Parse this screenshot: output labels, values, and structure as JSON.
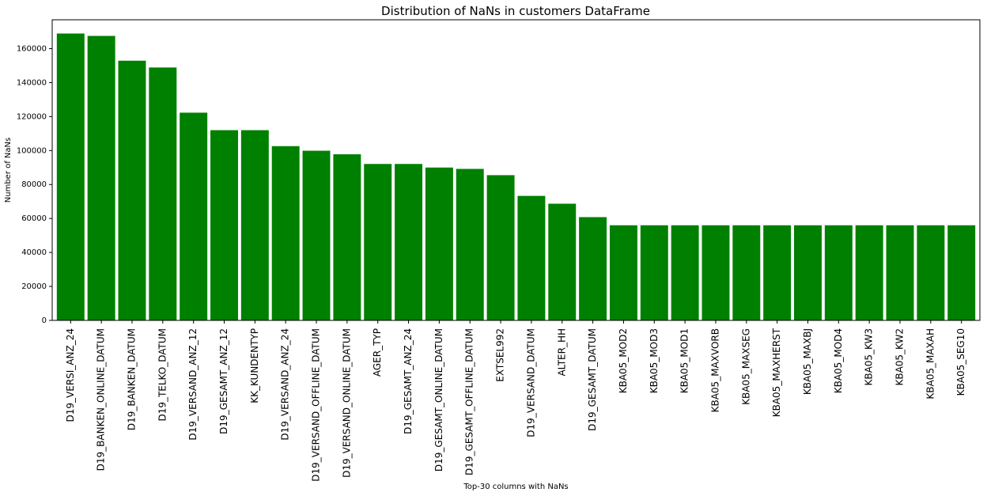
{
  "chart_data": {
    "type": "bar",
    "title": "Distribution of NaNs in customers DataFrame",
    "xlabel": "Top-30 columns with NaNs",
    "ylabel": "Number of NaNs",
    "ylim": [
      0,
      177000
    ],
    "yticks": [
      0,
      20000,
      40000,
      60000,
      80000,
      100000,
      120000,
      140000,
      160000
    ],
    "grid": false,
    "bar_color": "#008000",
    "categories": [
      "D19_VERSI_ANZ_24",
      "D19_BANKEN_ONLINE_DATUM",
      "D19_BANKEN_DATUM",
      "D19_TELKO_DATUM",
      "D19_VERSAND_ANZ_12",
      "D19_GESAMT_ANZ_12",
      "KK_KUNDENTYP",
      "D19_VERSAND_ANZ_24",
      "D19_VERSAND_OFFLINE_DATUM",
      "D19_VERSAND_ONLINE_DATUM",
      "AGER_TYP",
      "D19_GESAMT_ANZ_24",
      "D19_GESAMT_ONLINE_DATUM",
      "D19_GESAMT_OFFLINE_DATUM",
      "EXTSEL992",
      "D19_VERSAND_DATUM",
      "ALTER_HH",
      "D19_GESAMT_DATUM",
      "KBA05_MOD2",
      "KBA05_MOD3",
      "KBA05_MOD1",
      "KBA05_MAXVORB",
      "KBA05_MAXSEG",
      "KBA05_MAXHERST",
      "KBA05_MAXBJ",
      "KBA05_MOD4",
      "KBA05_KW3",
      "KBA05_KW2",
      "KBA05_MAXAH",
      "KBA05_SEG10"
    ],
    "values": [
      168900,
      167500,
      152900,
      148900,
      122300,
      112000,
      112000,
      102600,
      99900,
      97800,
      92100,
      92100,
      90000,
      89200,
      85500,
      73300,
      68700,
      60800,
      56000,
      56000,
      56000,
      56000,
      56000,
      56000,
      56000,
      56000,
      56000,
      56000,
      56000,
      56000
    ]
  }
}
